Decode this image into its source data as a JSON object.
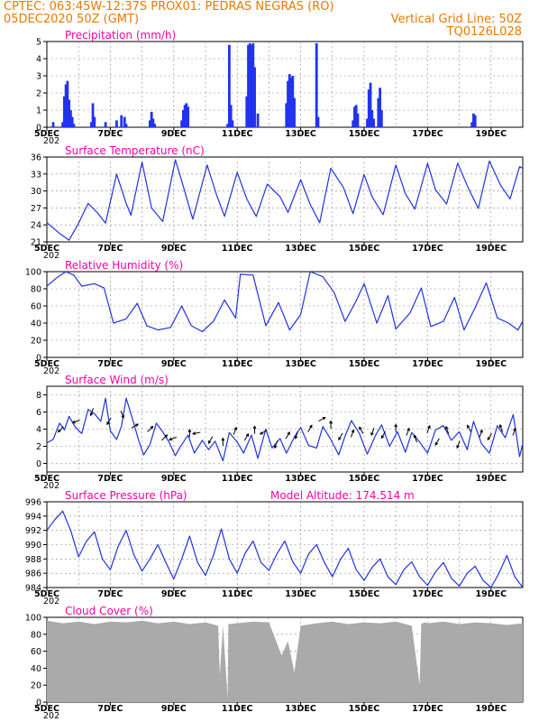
{
  "header": {
    "line1_left": "CPTEC:   063:45W-12:37S   PROX01: PEDRAS NEGRAS (RO)",
    "line2_left": "05DEC2020 50Z (GMT)",
    "line2_right": "Vertical Grid Line: 50Z",
    "line3_right": "TQ0126L028",
    "year_stub": "202"
  },
  "colors": {
    "header_text": "#e87a00",
    "panel_title": "#ff00aa",
    "series_line": "#2233dd",
    "precip_bar": "#2233ee",
    "cloud_fill": "#aaaaaa",
    "wind_arrow": "#000000"
  },
  "x_axis": {
    "labels": [
      "5DEC",
      "7DEC",
      "9DEC",
      "11DEC",
      "13DEC",
      "15DEC",
      "17DEC",
      "19DEC"
    ],
    "range_days": [
      0,
      15
    ],
    "label_days": [
      0,
      2,
      4,
      6,
      8,
      10,
      12,
      14
    ]
  },
  "chart_data": [
    {
      "type": "bar",
      "title": "Precipitation (mm/h)",
      "ylim": [
        0,
        5
      ],
      "yticks": [
        "0",
        "1",
        "2",
        "3",
        "4",
        "5"
      ],
      "grid": true,
      "x": [
        0.2,
        0.5,
        0.55,
        0.6,
        0.65,
        0.7,
        0.75,
        0.8,
        0.85,
        1.4,
        1.45,
        1.5,
        1.85,
        2.2,
        2.35,
        2.45,
        2.5,
        3.25,
        3.3,
        3.35,
        3.4,
        4.25,
        4.3,
        4.35,
        4.4,
        4.45,
        5.7,
        5.75,
        5.8,
        5.85,
        6.3,
        6.35,
        6.4,
        6.45,
        6.5,
        6.55,
        6.65,
        7.55,
        7.6,
        7.65,
        7.7,
        7.75,
        7.8,
        8.5,
        8.55,
        9.65,
        9.7,
        9.75,
        9.8,
        10.1,
        10.15,
        10.2,
        10.25,
        10.3,
        10.45,
        10.5,
        10.55,
        13.4,
        13.45,
        13.5
      ],
      "y": [
        0.3,
        0.3,
        1.8,
        2.5,
        2.7,
        1.6,
        1.0,
        0.6,
        0.2,
        0.3,
        1.4,
        0.6,
        0.3,
        0.4,
        0.7,
        0.6,
        0.2,
        0.4,
        0.9,
        0.5,
        0.2,
        0.4,
        1.0,
        1.3,
        1.4,
        1.2,
        0.2,
        4.8,
        1.3,
        0.4,
        1.8,
        4.8,
        4.9,
        4.8,
        4.9,
        3.5,
        0.8,
        1.4,
        2.7,
        3.1,
        2.9,
        3.0,
        1.7,
        4.9,
        0.6,
        0.4,
        1.2,
        1.3,
        0.8,
        0.5,
        2.2,
        2.6,
        1.0,
        0.5,
        1.7,
        2.3,
        1.0,
        0.3,
        0.8,
        0.7
      ]
    },
    {
      "type": "line",
      "title": "Surface Temperature (nC)",
      "ylim": [
        21,
        36
      ],
      "yticks": [
        "21",
        "24",
        "27",
        "30",
        "33",
        "36"
      ],
      "grid": true,
      "x": [
        0,
        0.4,
        0.7,
        1.0,
        1.3,
        1.6,
        1.85,
        2.2,
        2.5,
        2.65,
        3.0,
        3.3,
        3.65,
        4.05,
        4.3,
        4.6,
        5.05,
        5.35,
        5.6,
        6.0,
        6.3,
        6.6,
        6.95,
        7.35,
        7.6,
        8.0,
        8.3,
        8.6,
        8.95,
        9.35,
        9.65,
        10.0,
        10.25,
        10.6,
        11.0,
        11.3,
        11.6,
        12.0,
        12.25,
        12.6,
        12.95,
        13.3,
        13.6,
        13.95,
        14.3,
        14.6,
        14.9,
        15.0
      ],
      "y": [
        24.4,
        22.5,
        21.3,
        24.3,
        27.8,
        26.1,
        24.3,
        33.0,
        27.8,
        25.7,
        35.1,
        27.0,
        24.6,
        35.5,
        30.8,
        25.0,
        34.6,
        29.3,
        25.5,
        33.3,
        28.6,
        25.5,
        31.2,
        29.0,
        26.2,
        32.0,
        27.6,
        24.4,
        34.0,
        30.6,
        26.0,
        32.9,
        29.0,
        25.8,
        34.6,
        29.5,
        26.8,
        34.9,
        30.2,
        27.7,
        34.9,
        30.3,
        26.9,
        35.3,
        31.0,
        28.6,
        34.3,
        34.0
      ]
    },
    {
      "type": "line",
      "title": "Relative Humidity (%)",
      "ylim": [
        0,
        100
      ],
      "yticks": [
        "0",
        "20",
        "40",
        "60",
        "80",
        "100"
      ],
      "grid": true,
      "x": [
        0,
        0.35,
        0.6,
        0.85,
        1.1,
        1.5,
        1.8,
        2.1,
        2.5,
        2.85,
        3.15,
        3.5,
        3.9,
        4.25,
        4.55,
        4.9,
        5.25,
        5.6,
        5.95,
        6.1,
        6.5,
        6.9,
        7.3,
        7.65,
        8.0,
        8.3,
        8.7,
        9.05,
        9.4,
        9.75,
        10.0,
        10.4,
        10.75,
        11.0,
        11.45,
        11.8,
        12.1,
        12.5,
        12.85,
        13.15,
        13.5,
        13.85,
        14.2,
        14.55,
        14.85,
        15.0
      ],
      "y": [
        83,
        94,
        100,
        96,
        83,
        86,
        81,
        40,
        45,
        63,
        37,
        32,
        35,
        60,
        37,
        30,
        42,
        67,
        46,
        97,
        96,
        37,
        64,
        32,
        50,
        100,
        94,
        76,
        42,
        66,
        86,
        40,
        72,
        33,
        52,
        81,
        36,
        42,
        70,
        32,
        58,
        87,
        46,
        40,
        32,
        42
      ]
    },
    {
      "type": "line",
      "title": "Surface Wind (m/s)",
      "ylim": [
        -1,
        9
      ],
      "yticks": [
        "0",
        "2",
        "4",
        "6",
        "8"
      ],
      "grid": true,
      "x": [
        0,
        0.2,
        0.4,
        0.55,
        0.7,
        0.9,
        1.1,
        1.3,
        1.5,
        1.7,
        1.85,
        2.0,
        2.2,
        2.35,
        2.5,
        2.7,
        2.9,
        3.05,
        3.25,
        3.45,
        3.65,
        3.85,
        4.05,
        4.2,
        4.45,
        4.65,
        4.9,
        5.1,
        5.3,
        5.55,
        5.75,
        6.0,
        6.2,
        6.45,
        6.65,
        6.9,
        7.1,
        7.35,
        7.55,
        7.8,
        8.0,
        8.25,
        8.5,
        8.7,
        8.95,
        9.2,
        9.4,
        9.6,
        9.85,
        10.1,
        10.35,
        10.55,
        10.8,
        11.05,
        11.3,
        11.5,
        11.75,
        12.0,
        12.25,
        12.5,
        12.75,
        13.0,
        13.25,
        13.45,
        13.7,
        13.95,
        14.2,
        14.45,
        14.7,
        14.9,
        15.0
      ],
      "y": [
        2.4,
        2.8,
        4.7,
        3.9,
        5.5,
        4.2,
        3.5,
        6.3,
        5.8,
        4.9,
        7.6,
        3.8,
        2.8,
        4.3,
        7.6,
        5.2,
        2.6,
        1.0,
        2.2,
        4.7,
        3.7,
        2.5,
        0.9,
        1.9,
        3.3,
        1.2,
        2.7,
        1.6,
        2.6,
        0.3,
        3.6,
        2.5,
        1.2,
        3.3,
        0.6,
        4.0,
        1.8,
        2.9,
        1.2,
        3.1,
        4.2,
        2.1,
        1.8,
        4.3,
        2.8,
        1.0,
        3.2,
        5.0,
        3.5,
        1.1,
        3.2,
        4.5,
        2.0,
        3.7,
        1.3,
        3.6,
        2.5,
        1.2,
        3.9,
        4.4,
        2.7,
        3.7,
        1.6,
        4.9,
        2.3,
        1.2,
        4.4,
        3.0,
        5.7,
        0.8,
        2.3
      ],
      "arrows": {
        "x": [
          0.5,
          1.0,
          1.45,
          2.0,
          2.35,
          2.7,
          3.2,
          3.65,
          4.05,
          4.5,
          4.8,
          5.2,
          5.55,
          5.9,
          6.25,
          6.55,
          6.9,
          7.25,
          7.55,
          7.9,
          8.25,
          8.6,
          8.95,
          9.3,
          9.6,
          9.95,
          10.3,
          10.65,
          11.0,
          11.35,
          11.65,
          12.0,
          12.35,
          12.65,
          13.0,
          13.35,
          13.65,
          14.0,
          14.35,
          14.7
        ],
        "speed": [
          4.2,
          5.0,
          6.3,
          5.2,
          6.0,
          4.2,
          3.8,
          2.8,
          3.0,
          3.2,
          3.6,
          3.0,
          2.2,
          3.5,
          2.8,
          3.6,
          3.8,
          2.5,
          3.0,
          3.6,
          3.8,
          5.0,
          4.2,
          3.4,
          3.2,
          3.6,
          4.0,
          3.6,
          3.8,
          3.4,
          2.6,
          3.7,
          2.8,
          3.6,
          2.5,
          3.8,
          3.2,
          3.4,
          3.8,
          3.4
        ],
        "dir_deg": [
          225,
          250,
          200,
          210,
          160,
          60,
          45,
          45,
          250,
          0,
          260,
          210,
          0,
          20,
          30,
          0,
          240,
          200,
          30,
          200,
          30,
          60,
          0,
          210,
          20,
          330,
          200,
          210,
          0,
          20,
          340,
          20,
          210,
          340,
          200,
          330,
          20,
          210,
          340,
          20
        ]
      }
    },
    {
      "type": "line",
      "title": "Surface Pressure (hPa)",
      "annotation": "Model Altitude: 174.514 m",
      "ylim": [
        984,
        996
      ],
      "yticks": [
        "984",
        "986",
        "988",
        "990",
        "992",
        "994",
        "996"
      ],
      "grid": true,
      "x": [
        0,
        0.25,
        0.5,
        0.75,
        1.0,
        1.25,
        1.5,
        1.75,
        2.0,
        2.25,
        2.5,
        2.75,
        3.0,
        3.25,
        3.5,
        3.75,
        4.0,
        4.25,
        4.5,
        4.75,
        5.0,
        5.25,
        5.5,
        5.75,
        6.0,
        6.25,
        6.5,
        6.75,
        7.0,
        7.25,
        7.5,
        7.75,
        8.0,
        8.25,
        8.5,
        8.75,
        9.0,
        9.25,
        9.5,
        9.75,
        10.0,
        10.25,
        10.5,
        10.75,
        11.0,
        11.25,
        11.5,
        11.75,
        12.0,
        12.25,
        12.5,
        12.75,
        13.0,
        13.25,
        13.5,
        13.75,
        14.0,
        14.25,
        14.5,
        14.75,
        15.0
      ],
      "y": [
        992.0,
        993.5,
        994.7,
        992.0,
        988.3,
        990.5,
        991.8,
        988.0,
        986.5,
        989.8,
        992.0,
        988.5,
        986.3,
        988.0,
        990.0,
        987.5,
        985.2,
        988.0,
        991.2,
        987.5,
        985.7,
        988.5,
        992.2,
        988.0,
        986.0,
        988.8,
        990.5,
        987.5,
        986.4,
        988.7,
        990.5,
        987.6,
        986.0,
        988.7,
        990.0,
        987.5,
        985.5,
        987.9,
        989.5,
        986.5,
        985.0,
        986.8,
        988.0,
        985.5,
        984.4,
        986.5,
        987.6,
        985.5,
        984.3,
        986.2,
        987.5,
        985.3,
        984.2,
        986.0,
        987.0,
        985.0,
        984.0,
        986.0,
        988.5,
        985.5,
        984.0
      ]
    },
    {
      "type": "area",
      "title": "Cloud Cover (%)",
      "ylim": [
        0,
        100
      ],
      "yticks": [
        "0",
        "20",
        "40",
        "60",
        "80",
        "100"
      ],
      "grid": true,
      "x": [
        0,
        0.5,
        1.0,
        1.5,
        2.0,
        2.5,
        3.0,
        3.5,
        4.0,
        4.5,
        5.0,
        5.4,
        5.45,
        5.55,
        5.7,
        5.72,
        6.0,
        6.5,
        7.0,
        7.4,
        7.6,
        7.8,
        8.0,
        8.5,
        9.0,
        9.5,
        10.0,
        10.5,
        11.0,
        11.5,
        11.75,
        11.8,
        11.9,
        12.0,
        12.5,
        13.0,
        13.5,
        14.0,
        14.5,
        15.0
      ],
      "y": [
        96,
        93,
        95,
        92,
        95,
        94,
        96,
        93,
        95,
        92,
        94,
        90,
        32,
        90,
        5,
        92,
        93,
        95,
        94,
        55,
        72,
        35,
        90,
        93,
        95,
        92,
        94,
        93,
        95,
        90,
        20,
        92,
        94,
        93,
        95,
        92,
        94,
        93,
        91,
        93
      ]
    }
  ]
}
